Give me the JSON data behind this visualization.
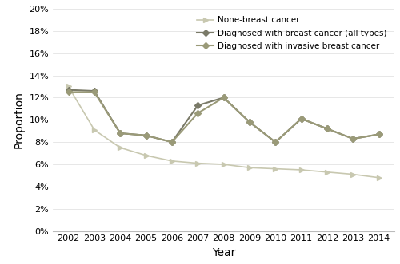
{
  "years": [
    2002,
    2003,
    2004,
    2005,
    2006,
    2007,
    2008,
    2009,
    2010,
    2011,
    2012,
    2013,
    2014
  ],
  "none_breast": [
    0.13,
    0.091,
    0.075,
    0.068,
    0.063,
    0.061,
    0.06,
    0.057,
    0.056,
    0.055,
    0.053,
    0.051,
    0.048
  ],
  "all_types": [
    0.127,
    0.126,
    0.088,
    0.086,
    0.08,
    0.113,
    0.12,
    0.098,
    0.08,
    0.101,
    0.092,
    0.083,
    0.087
  ],
  "invasive": [
    0.125,
    0.125,
    0.088,
    0.086,
    0.08,
    0.106,
    0.12,
    0.098,
    0.08,
    0.101,
    0.092,
    0.083,
    0.087
  ],
  "none_color": "#c8c8b0",
  "all_color": "#7a7a68",
  "invasive_color": "#9a9a78",
  "legend_none": "None-breast cancer",
  "legend_all": "Diagnosed with breast cancer (all types)",
  "legend_invasive": "Diagnosed with invasive breast cancer",
  "xlabel": "Year",
  "ylabel": "Proportion",
  "ylim": [
    0.0,
    0.2
  ],
  "yticks": [
    0.0,
    0.02,
    0.04,
    0.06,
    0.08,
    0.1,
    0.12,
    0.14,
    0.16,
    0.18,
    0.2
  ],
  "bg_color": "#ffffff"
}
